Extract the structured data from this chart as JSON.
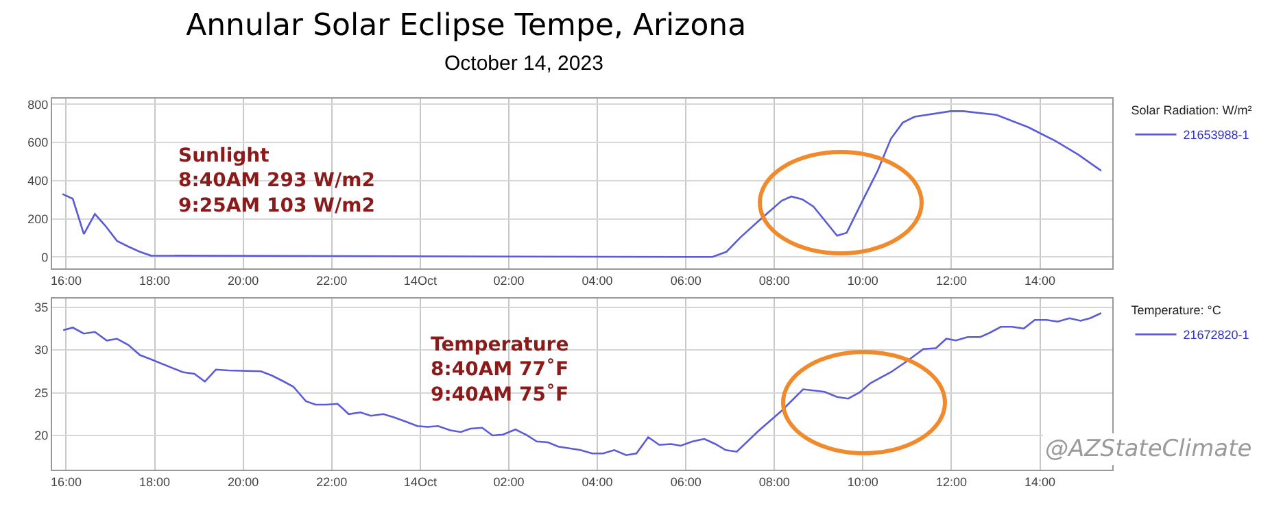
{
  "chart_data": [
    {
      "type": "line",
      "title": "Annular Solar Eclipse Tempe, Arizona",
      "subtitle": "October 14, 2023",
      "legend_title": "Solar Radiation: W/m²",
      "legend": "top right",
      "grid": true,
      "marker": "none",
      "line_style": "solid",
      "annotations": [
        "Sunlight\n8:40AM 293 W/m2\n9:25AM 103 W/m2"
      ],
      "xlim": [
        "2023-10-13T15:41",
        "2023-10-14T15:38"
      ],
      "xticks": [
        {
          "value": "2023-10-13T16:00",
          "label": "16:00"
        },
        {
          "value": "2023-10-13T18:00",
          "label": "18:00"
        },
        {
          "value": "2023-10-13T20:00",
          "label": "20:00"
        },
        {
          "value": "2023-10-13T22:00",
          "label": "22:00"
        },
        {
          "value": "2023-10-14T00:00",
          "label": "14Oct"
        },
        {
          "value": "2023-10-14T02:00",
          "label": "02:00"
        },
        {
          "value": "2023-10-14T04:00",
          "label": "04:00"
        },
        {
          "value": "2023-10-14T06:00",
          "label": "06:00"
        },
        {
          "value": "2023-10-14T08:00",
          "label": "08:00"
        },
        {
          "value": "2023-10-14T10:00",
          "label": "10:00"
        },
        {
          "value": "2023-10-14T12:00",
          "label": "12:00"
        },
        {
          "value": "2023-10-14T14:00",
          "label": "14:00"
        }
      ],
      "ylim": [
        -60,
        830
      ],
      "yticks": [
        0,
        200,
        400,
        600,
        800
      ],
      "series": [
        {
          "name": "21653988-1",
          "color": "#5b5bd6",
          "x": [
            "2023-10-13T15:55",
            "2023-10-13T16:09",
            "2023-10-13T16:24",
            "2023-10-13T16:39",
            "2023-10-13T16:53",
            "2023-10-13T17:09",
            "2023-10-13T17:24",
            "2023-10-13T17:40",
            "2023-10-13T17:55",
            "2023-10-14T06:00",
            "2023-10-14T06:36",
            "2023-10-14T06:55",
            "2023-10-14T07:14",
            "2023-10-14T07:38",
            "2023-10-14T08:10",
            "2023-10-14T08:23",
            "2023-10-14T08:38",
            "2023-10-14T08:53",
            "2023-10-14T09:25",
            "2023-10-14T09:38",
            "2023-10-14T09:55",
            "2023-10-14T10:20",
            "2023-10-14T10:38",
            "2023-10-14T10:54",
            "2023-10-14T11:10",
            "2023-10-14T11:59",
            "2023-10-14T12:16",
            "2023-10-14T13:01",
            "2023-10-14T13:44",
            "2023-10-14T14:21",
            "2023-10-14T14:52",
            "2023-10-14T15:23"
          ],
          "values": [
            330,
            305,
            120,
            225,
            164,
            84,
            55,
            27,
            7,
            0,
            0,
            27,
            103,
            187,
            295,
            317,
            302,
            264,
            111,
            127,
            260,
            452,
            620,
            704,
            735,
            764,
            764,
            745,
            680,
            608,
            536,
            452
          ]
        }
      ]
    },
    {
      "type": "line",
      "legend_title": "Temperature: °C",
      "legend": "top right",
      "grid": true,
      "marker": "none",
      "line_style": "solid",
      "annotations": [
        "Temperature\n8:40AM 77˚F\n9:40AM 75˚F",
        "@AZStateClimate"
      ],
      "xlim": [
        "2023-10-13T15:41",
        "2023-10-14T15:38"
      ],
      "xticks": [
        {
          "value": "2023-10-13T16:00",
          "label": "16:00"
        },
        {
          "value": "2023-10-13T18:00",
          "label": "18:00"
        },
        {
          "value": "2023-10-13T20:00",
          "label": "20:00"
        },
        {
          "value": "2023-10-13T22:00",
          "label": "22:00"
        },
        {
          "value": "2023-10-14T00:00",
          "label": "14Oct"
        },
        {
          "value": "2023-10-14T02:00",
          "label": "02:00"
        },
        {
          "value": "2023-10-14T04:00",
          "label": "04:00"
        },
        {
          "value": "2023-10-14T06:00",
          "label": "06:00"
        },
        {
          "value": "2023-10-14T08:00",
          "label": "08:00"
        },
        {
          "value": "2023-10-14T10:00",
          "label": "10:00"
        },
        {
          "value": "2023-10-14T12:00",
          "label": "12:00"
        },
        {
          "value": "2023-10-14T14:00",
          "label": "14:00"
        }
      ],
      "ylim": [
        16,
        36
      ],
      "yticks": [
        20,
        25,
        30,
        35
      ],
      "series": [
        {
          "name": "21672820-1",
          "color": "#5b5bd6",
          "x": [
            "2023-10-13T15:56",
            "2023-10-13T16:09",
            "2023-10-13T16:24",
            "2023-10-13T16:39",
            "2023-10-13T16:55",
            "2023-10-13T17:09",
            "2023-10-13T17:24",
            "2023-10-13T17:40",
            "2023-10-13T17:55",
            "2023-10-13T18:38",
            "2023-10-13T18:54",
            "2023-10-13T19:08",
            "2023-10-13T19:23",
            "2023-10-13T19:40",
            "2023-10-13T20:24",
            "2023-10-13T20:39",
            "2023-10-13T20:55",
            "2023-10-13T21:08",
            "2023-10-13T21:25",
            "2023-10-13T21:38",
            "2023-10-13T21:53",
            "2023-10-13T22:08",
            "2023-10-13T22:23",
            "2023-10-13T22:39",
            "2023-10-13T22:53",
            "2023-10-13T23:10",
            "2023-10-13T23:25",
            "2023-10-13T23:41",
            "2023-10-13T23:56",
            "2023-10-14T00:10",
            "2023-10-14T00:24",
            "2023-10-14T00:41",
            "2023-10-14T00:55",
            "2023-10-14T01:08",
            "2023-10-14T01:24",
            "2023-10-14T01:38",
            "2023-10-14T01:52",
            "2023-10-14T02:09",
            "2023-10-14T02:23",
            "2023-10-14T02:38",
            "2023-10-14T02:53",
            "2023-10-14T03:07",
            "2023-10-14T03:22",
            "2023-10-14T03:37",
            "2023-10-14T03:53",
            "2023-10-14T04:08",
            "2023-10-14T04:23",
            "2023-10-14T04:39",
            "2023-10-14T04:53",
            "2023-10-14T05:04",
            "2023-10-14T05:09",
            "2023-10-14T05:24",
            "2023-10-14T05:40",
            "2023-10-14T05:53",
            "2023-10-14T06:09",
            "2023-10-14T06:25",
            "2023-10-14T06:40",
            "2023-10-14T06:54",
            "2023-10-14T07:09",
            "2023-10-14T07:38",
            "2023-10-14T08:10",
            "2023-10-14T08:39",
            "2023-10-14T09:08",
            "2023-10-14T09:25",
            "2023-10-14T09:40",
            "2023-10-14T09:55",
            "2023-10-14T10:10",
            "2023-10-14T10:38",
            "2023-10-14T11:00",
            "2023-10-14T11:22",
            "2023-10-14T11:39",
            "2023-10-14T11:53",
            "2023-10-14T12:06",
            "2023-10-14T12:22",
            "2023-10-14T12:39",
            "2023-10-14T12:52",
            "2023-10-14T13:07",
            "2023-10-14T13:22",
            "2023-10-14T13:38",
            "2023-10-14T13:53",
            "2023-10-14T14:09",
            "2023-10-14T14:24",
            "2023-10-14T14:40",
            "2023-10-14T14:55",
            "2023-10-14T15:08",
            "2023-10-14T15:23"
          ],
          "values": [
            32.3,
            32.6,
            31.9,
            32.1,
            31.1,
            31.3,
            30.6,
            29.4,
            28.9,
            27.4,
            27.2,
            26.3,
            27.7,
            27.6,
            27.5,
            27.0,
            26.3,
            25.7,
            24.0,
            23.6,
            23.6,
            23.7,
            22.5,
            22.7,
            22.3,
            22.5,
            22.1,
            21.6,
            21.1,
            21.0,
            21.1,
            20.6,
            20.4,
            20.8,
            20.9,
            20.0,
            20.1,
            20.7,
            20.1,
            19.3,
            19.2,
            18.7,
            18.5,
            18.3,
            17.9,
            17.9,
            18.3,
            17.7,
            17.9,
            19.2,
            19.8,
            18.9,
            19.0,
            18.8,
            19.3,
            19.6,
            19.0,
            18.3,
            18.1,
            20.5,
            22.9,
            25.4,
            25.1,
            24.5,
            24.3,
            25.0,
            26.1,
            27.4,
            28.7,
            30.1,
            30.2,
            31.3,
            31.1,
            31.5,
            31.5,
            32.0,
            32.7,
            32.7,
            32.5,
            33.5,
            33.5,
            33.3,
            33.7,
            33.4,
            33.7,
            34.3
          ]
        }
      ]
    }
  ]
}
